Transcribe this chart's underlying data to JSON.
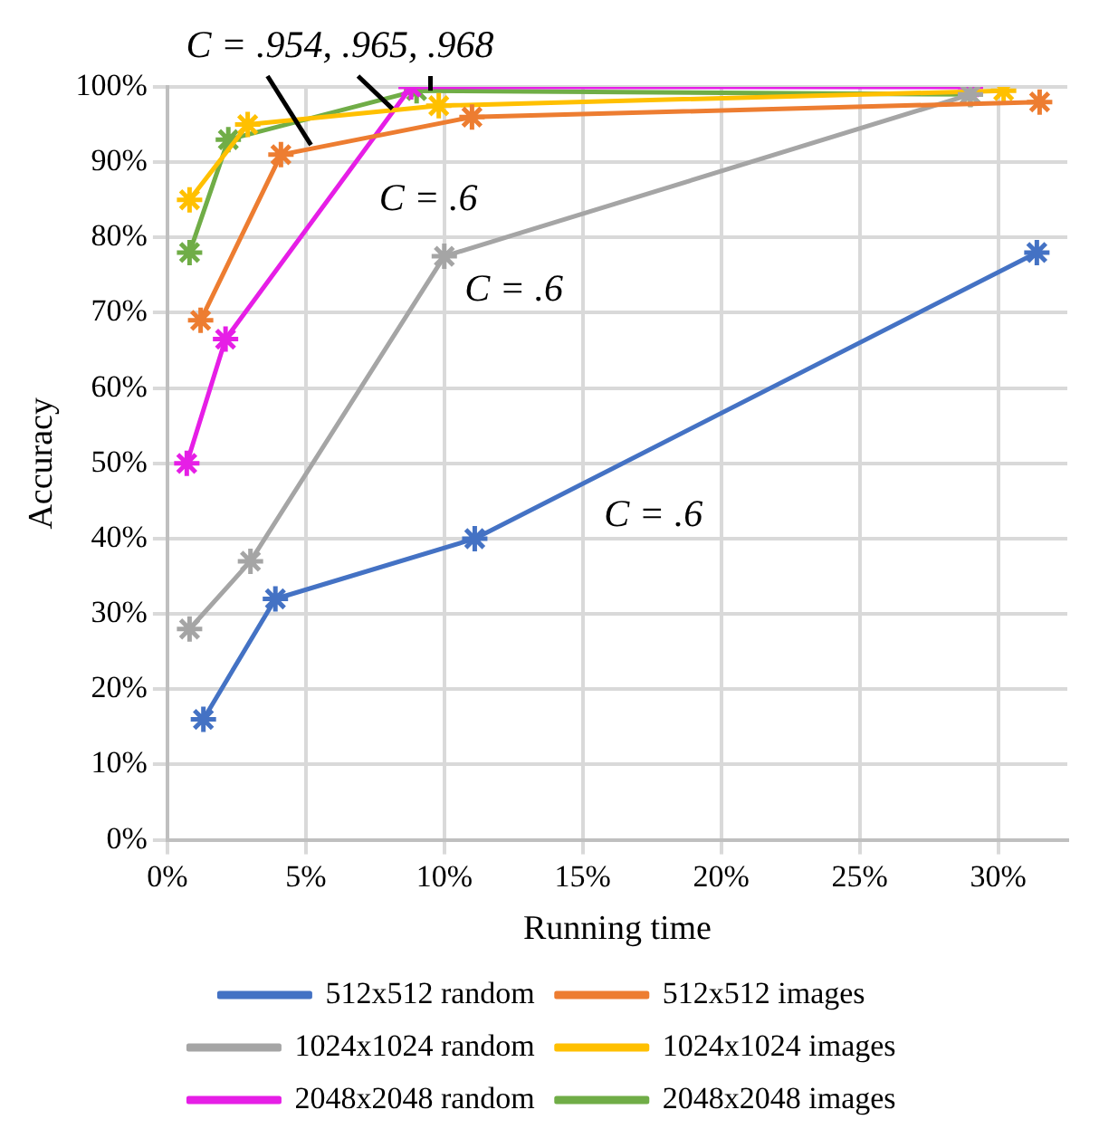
{
  "chart_data": {
    "type": "line",
    "xlabel": "Running time",
    "ylabel": "Accuracy",
    "xlim": [
      0,
      32.5
    ],
    "ylim": [
      0,
      100
    ],
    "xticks": [
      {
        "value": 0,
        "label": "0%"
      },
      {
        "value": 5,
        "label": "5%"
      },
      {
        "value": 10,
        "label": "10%"
      },
      {
        "value": 15,
        "label": "15%"
      },
      {
        "value": 20,
        "label": "20%"
      },
      {
        "value": 25,
        "label": "25%"
      },
      {
        "value": 30,
        "label": "30%"
      }
    ],
    "yticks": [
      {
        "value": 0,
        "label": "0%"
      },
      {
        "value": 10,
        "label": "10%"
      },
      {
        "value": 20,
        "label": "20%"
      },
      {
        "value": 30,
        "label": "30%"
      },
      {
        "value": 40,
        "label": "40%"
      },
      {
        "value": 50,
        "label": "50%"
      },
      {
        "value": 60,
        "label": "60%"
      },
      {
        "value": 70,
        "label": "70%"
      },
      {
        "value": 80,
        "label": "80%"
      },
      {
        "value": 90,
        "label": "90%"
      },
      {
        "value": 100,
        "label": "100%"
      }
    ],
    "grid": true,
    "legend": "bottom",
    "marker": "cross",
    "line_style": "solid",
    "series": [
      {
        "name": "512x512 random",
        "color": "#4472c4",
        "x": [
          1.3,
          3.9,
          11.1,
          31.4
        ],
        "values": [
          16,
          32,
          40,
          78
        ]
      },
      {
        "name": "512x512 images",
        "color": "#ed7d31",
        "x": [
          1.2,
          4.1,
          11,
          31.5
        ],
        "values": [
          69,
          91,
          96,
          98
        ]
      },
      {
        "name": "1024x1024 random",
        "color": "#a5a5a5",
        "x": [
          0.8,
          3,
          10,
          29
        ],
        "values": [
          28,
          37,
          77.5,
          99
        ]
      },
      {
        "name": "1024x1024 images",
        "color": "#ffc000",
        "x": [
          0.8,
          2.9,
          9.8,
          30.2
        ],
        "values": [
          85,
          95,
          97.5,
          99.5
        ]
      },
      {
        "name": "2048x2048 random",
        "color": "#e61ee6",
        "x": [
          0.7,
          2.1,
          8.8,
          29
        ],
        "values": [
          50,
          66.5,
          100,
          100
        ]
      },
      {
        "name": "2048x2048 images",
        "color": "#70ad47",
        "x": [
          0.8,
          2.2,
          9,
          29
        ],
        "values": [
          78,
          93,
          99.5,
          99
        ]
      }
    ],
    "annotations": [
      {
        "text": "C = .954, .965, .968",
        "x": 9.5,
        "y": 99.5
      },
      "C = .6",
      "C = .6",
      "C = .6"
    ]
  }
}
